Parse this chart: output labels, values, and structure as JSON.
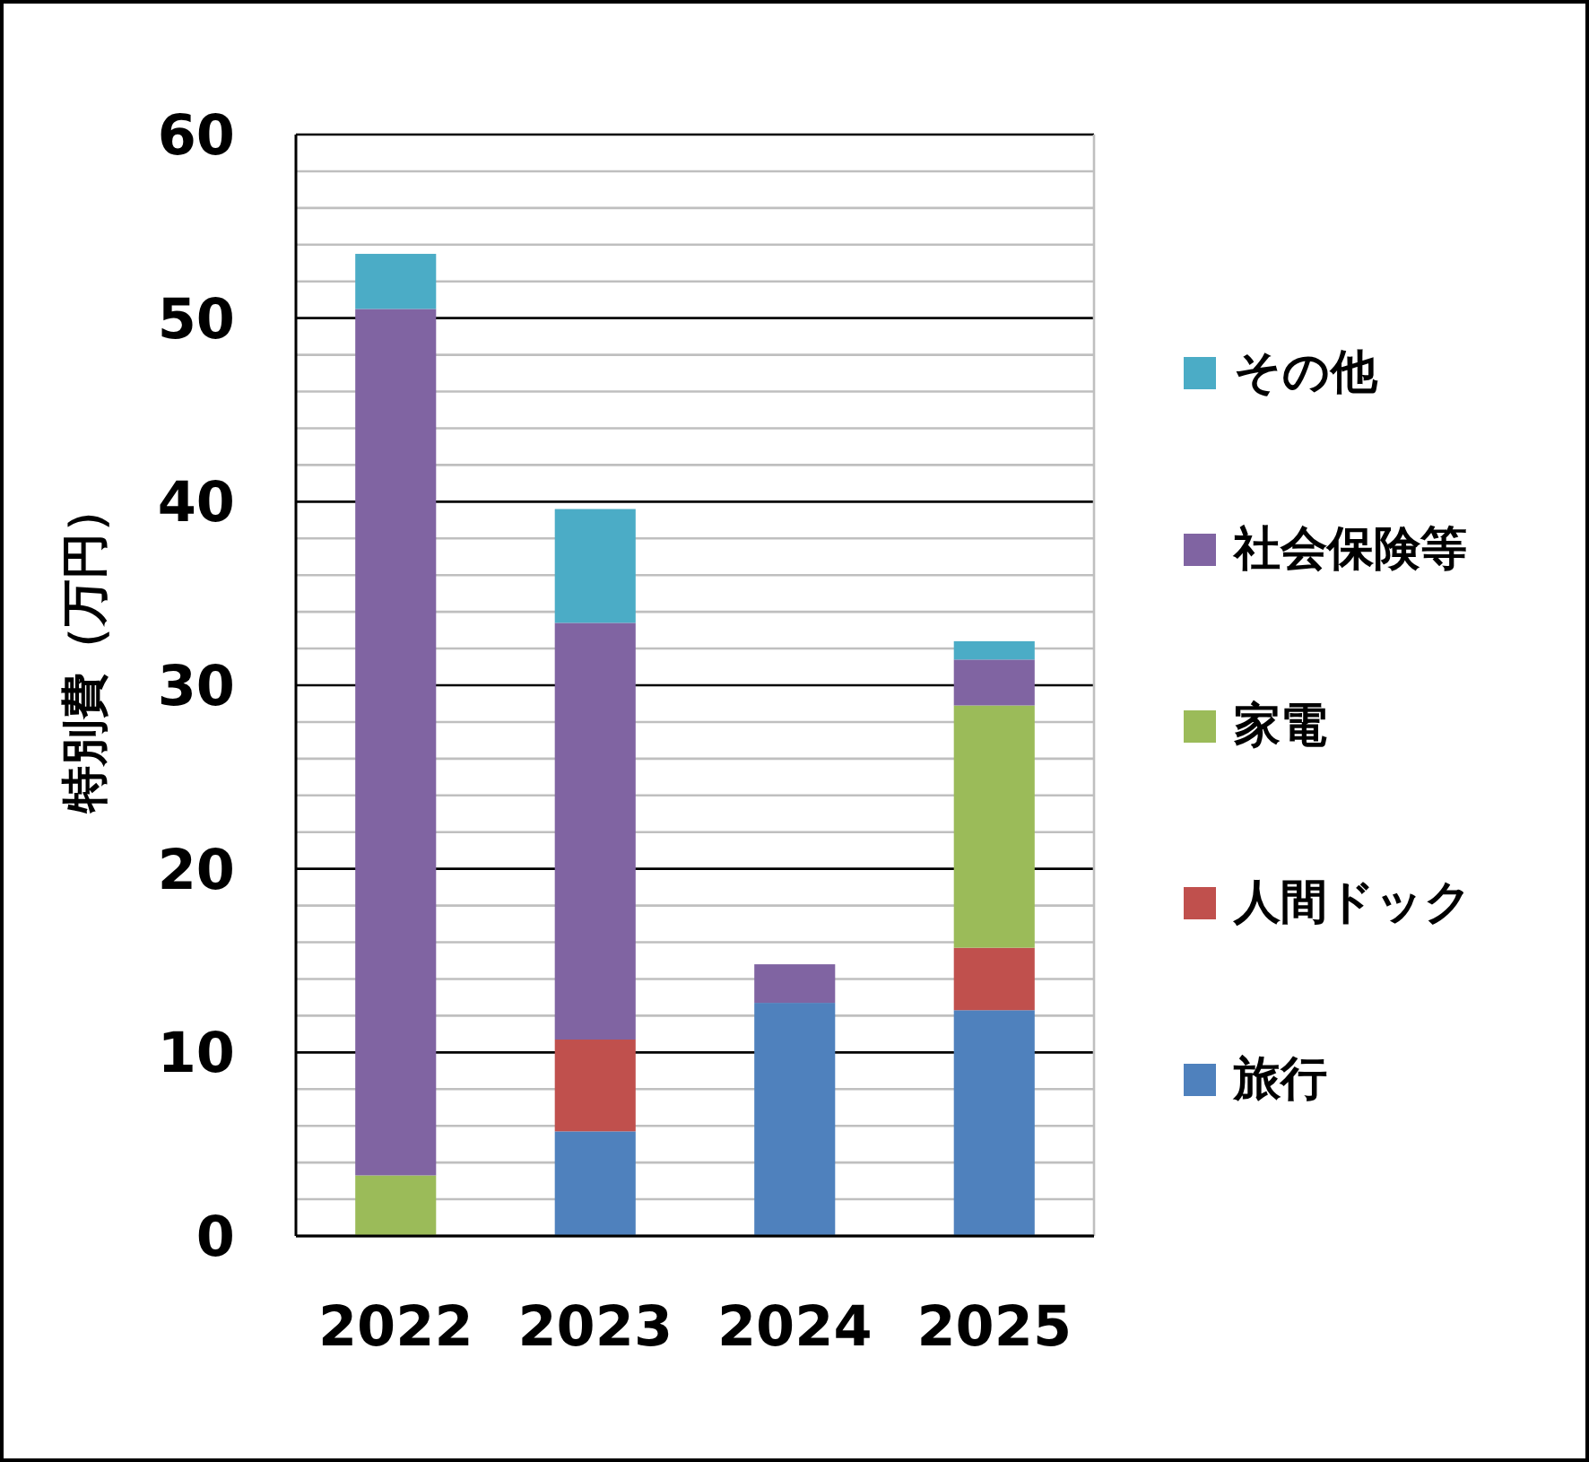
{
  "chart_data": {
    "type": "bar",
    "stacked": true,
    "ylabel": "特別費（万円）",
    "categories": [
      "2022",
      "2023",
      "2024",
      "2025"
    ],
    "series": [
      {
        "name": "旅行",
        "color": "#4f81bd",
        "values": [
          null,
          5.7,
          12.7,
          12.3
        ]
      },
      {
        "name": "人間ドック",
        "color": "#c0504d",
        "values": [
          null,
          5.0,
          null,
          3.4
        ]
      },
      {
        "name": "家電",
        "color": "#9bbb59",
        "values": [
          3.3,
          null,
          null,
          13.2
        ]
      },
      {
        "name": "社会保険等",
        "color": "#8064a2",
        "values": [
          47.2,
          22.7,
          2.1,
          2.5
        ]
      },
      {
        "name": "その他",
        "color": "#4bacc6",
        "values": [
          3.0,
          6.2,
          null,
          1.0
        ]
      }
    ],
    "ylim": [
      0,
      60
    ],
    "yticks": [
      0,
      {
        "value": 2,
        "label": null
      },
      {
        "value": 4,
        "label": null
      },
      {
        "value": 6,
        "label": null
      },
      {
        "value": 8,
        "label": null
      },
      10,
      {
        "value": 12,
        "label": null
      },
      {
        "value": 14,
        "label": null
      },
      {
        "value": 16,
        "label": null
      },
      {
        "value": 18,
        "label": null
      },
      20,
      {
        "value": 22,
        "label": null
      },
      {
        "value": 24,
        "label": null
      },
      {
        "value": 26,
        "label": null
      },
      {
        "value": 28,
        "label": null
      },
      30,
      {
        "value": 32,
        "label": null
      },
      {
        "value": 34,
        "label": null
      },
      {
        "value": 36,
        "label": null
      },
      {
        "value": 38,
        "label": null
      },
      40,
      {
        "value": 42,
        "label": null
      },
      {
        "value": 44,
        "label": null
      },
      {
        "value": 46,
        "label": null
      },
      {
        "value": 48,
        "label": null
      },
      50,
      {
        "value": 52,
        "label": null
      },
      {
        "value": 54,
        "label": null
      },
      {
        "value": 56,
        "label": null
      },
      {
        "value": 58,
        "label": null
      },
      60
    ],
    "grid": true,
    "legend": "right"
  }
}
